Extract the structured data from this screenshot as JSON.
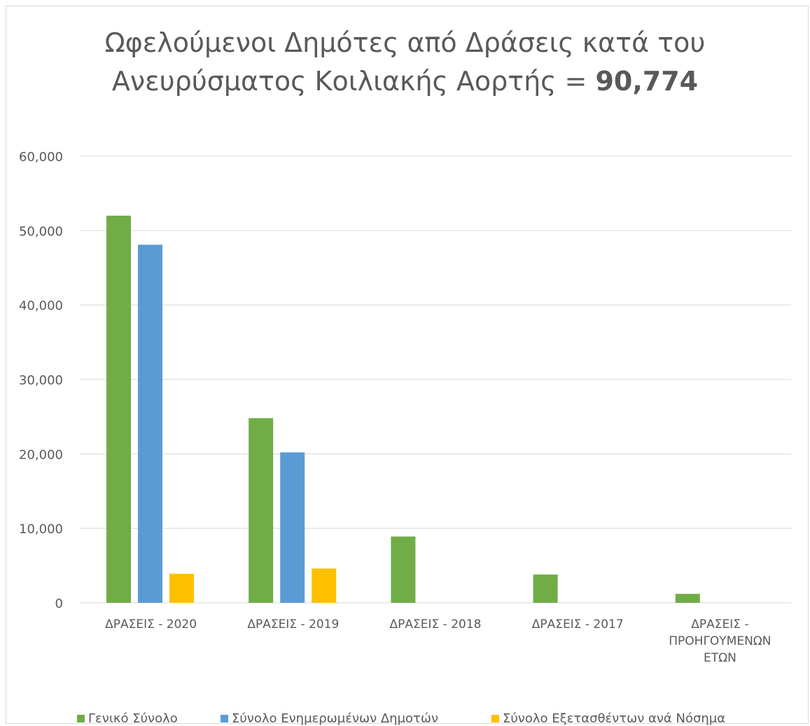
{
  "chart_data": {
    "type": "bar",
    "title_line1": "Ωφελούμενοι Δημότες  από Δράσεις κατά του",
    "title_line2_prefix": "Ανευρύσματος Κοιλιακής Αορτής = ",
    "title_line2_value": "90,774",
    "categories": [
      [
        "ΔΡΑΣΕΙΣ -  2020"
      ],
      [
        "ΔΡΑΣΕΙΣ -  2019"
      ],
      [
        "ΔΡΑΣΕΙΣ -  2018"
      ],
      [
        "ΔΡΑΣΕΙΣ -  2017"
      ],
      [
        "ΔΡΑΣΕΙΣ -",
        "ΠΡΟΗΓΟΥΜΕΝΩΝ",
        "ΕΤΩΝ"
      ]
    ],
    "series": [
      {
        "name": "Γενικό Σύνολο",
        "color": "#70ad47",
        "values": [
          52000,
          24800,
          8900,
          3800,
          1200
        ]
      },
      {
        "name": "Σύνολο Ενημερωμένων Δημοτών",
        "color": "#5b9bd5",
        "values": [
          48100,
          20200,
          0,
          0,
          0
        ]
      },
      {
        "name": "Σύνολο Εξετασθέντων ανά Νόσημα",
        "color": "#ffc000",
        "values": [
          3900,
          4600,
          0,
          0,
          0
        ]
      }
    ],
    "ylim": [
      0,
      60000
    ],
    "yticks": [
      0,
      10000,
      20000,
      30000,
      40000,
      50000,
      60000
    ],
    "ytick_labels": [
      "0",
      "10,000",
      "20,000",
      "30,000",
      "40,000",
      "50,000",
      "60,000"
    ],
    "grid": true,
    "legend_position": "bottom"
  }
}
